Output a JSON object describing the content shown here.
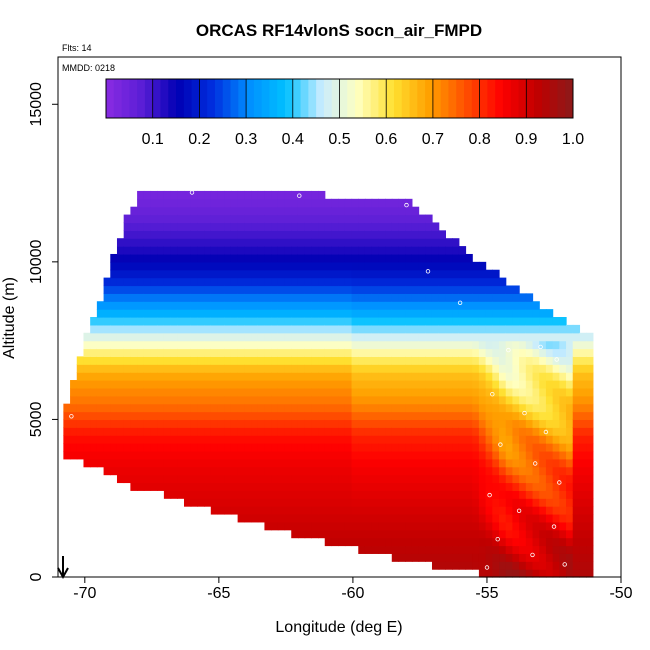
{
  "chart_data": {
    "type": "heatmap",
    "title": "ORCAS RF14vlonS socn_air_FMPD",
    "flights_label": "Flts: 14",
    "mmdd_label": "MMDD: 0218",
    "xlabel": "Longitude (deg E)",
    "ylabel": "Altitude (m)",
    "xlim": [
      -71.0,
      -50.0
    ],
    "ylim": [
      0,
      16500
    ],
    "xticks": [
      -70,
      -65,
      -60,
      -55,
      -50
    ],
    "yticks": [
      0,
      5000,
      10000,
      15000
    ],
    "colorbar": {
      "range": [
        0.0,
        1.0
      ],
      "ticks": [
        "0.1",
        "0.2",
        "0.3",
        "0.4",
        "0.5",
        "0.6",
        "0.7",
        "0.8",
        "0.9",
        "1.0"
      ],
      "colors": [
        "#8a2be2",
        "#5a1ed6",
        "#0000b4",
        "#0030e0",
        "#0090ff",
        "#00c0ff",
        "#c8ecff",
        "#ffffc0",
        "#ffe030",
        "#ffa000",
        "#ff5000",
        "#ff0000",
        "#c00000",
        "#8b1a1a"
      ]
    },
    "domain_shape": {
      "lon": [
        -70.8,
        -70.5,
        -70.0,
        -69.5,
        -69.0,
        -68.5,
        -68.0,
        -67.0,
        -66.0,
        -65.0,
        -64.0,
        -63.0,
        -62.0,
        -61.0,
        -60.0,
        -59.0,
        -58.0,
        -57.0,
        -56.0,
        -55.0,
        -54.0,
        -53.0,
        -52.0,
        -51.2
      ],
      "top": [
        5000,
        6000,
        7500,
        8500,
        9800,
        11200,
        12000,
        12200,
        12200,
        12200,
        12150,
        12100,
        12050,
        12000,
        11950,
        11900,
        11850,
        11200,
        10400,
        9700,
        9100,
        8500,
        7900,
        7600
      ],
      "bottom": [
        3800,
        3700,
        3600,
        3450,
        3200,
        3000,
        2800,
        2600,
        2300,
        2050,
        1800,
        1550,
        1300,
        1100,
        900,
        700,
        500,
        350,
        200,
        100,
        0,
        0,
        0,
        0
      ]
    },
    "altitude_profile": {
      "altitude": [
        0,
        2000,
        3500,
        4500,
        5500,
        6500,
        7200,
        7800,
        8500,
        9500,
        10500,
        11500,
        12200
      ],
      "value": [
        0.95,
        0.9,
        0.86,
        0.82,
        0.72,
        0.66,
        0.55,
        0.45,
        0.33,
        0.2,
        0.12,
        0.06,
        0.03
      ]
    },
    "eastern_anomaly": {
      "lon_range": [
        -55.5,
        -51.8
      ],
      "altitude_range": [
        0,
        7500
      ],
      "value_range": [
        0.45,
        0.95
      ]
    },
    "sample_points": [
      {
        "lon": -54.2,
        "alt": 7200
      },
      {
        "lon": -53.0,
        "alt": 7300
      },
      {
        "lon": -52.4,
        "alt": 6900
      },
      {
        "lon": -54.8,
        "alt": 5800
      },
      {
        "lon": -53.6,
        "alt": 5200
      },
      {
        "lon": -52.8,
        "alt": 4600
      },
      {
        "lon": -54.5,
        "alt": 4200
      },
      {
        "lon": -53.2,
        "alt": 3600
      },
      {
        "lon": -52.3,
        "alt": 3000
      },
      {
        "lon": -54.9,
        "alt": 2600
      },
      {
        "lon": -53.8,
        "alt": 2100
      },
      {
        "lon": -52.5,
        "alt": 1600
      },
      {
        "lon": -54.6,
        "alt": 1200
      },
      {
        "lon": -53.3,
        "alt": 700
      },
      {
        "lon": -52.1,
        "alt": 400
      },
      {
        "lon": -55.0,
        "alt": 300
      },
      {
        "lon": -56.0,
        "alt": 8700
      },
      {
        "lon": -57.2,
        "alt": 9700
      },
      {
        "lon": -58.0,
        "alt": 11800
      },
      {
        "lon": -62.0,
        "alt": 12100
      },
      {
        "lon": -66.0,
        "alt": 12200
      },
      {
        "lon": -68.5,
        "alt": 11900
      },
      {
        "lon": -70.5,
        "alt": 5100
      }
    ]
  }
}
